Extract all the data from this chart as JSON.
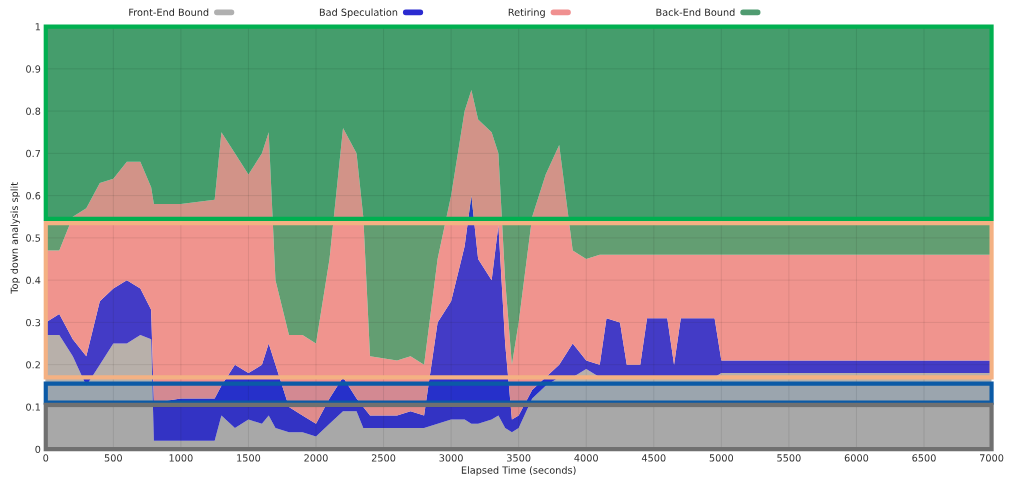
{
  "chart_data": {
    "type": "area",
    "stacked": true,
    "xlabel": "Elapsed Time (seconds)",
    "ylabel": "Top down analysis split",
    "x": [
      0,
      100,
      200,
      300,
      400,
      500,
      600,
      700,
      780,
      800,
      1000,
      1250,
      1300,
      1400,
      1500,
      1600,
      1650,
      1700,
      1800,
      1900,
      2000,
      2100,
      2200,
      2300,
      2350,
      2400,
      2600,
      2700,
      2800,
      2900,
      3000,
      3100,
      3150,
      3200,
      3300,
      3350,
      3400,
      3450,
      3500,
      3600,
      3700,
      3800,
      3900,
      4000,
      4100,
      4150,
      4250,
      4300,
      4400,
      4450,
      4600,
      4650,
      4700,
      4950,
      5000,
      5500,
      6000,
      6500,
      7000
    ],
    "series": [
      {
        "name": "Front-End Bound",
        "color": "#b0b0b0",
        "values": [
          0.27,
          0.27,
          0.22,
          0.15,
          0.2,
          0.25,
          0.25,
          0.27,
          0.26,
          0.02,
          0.02,
          0.02,
          0.08,
          0.05,
          0.07,
          0.06,
          0.08,
          0.05,
          0.04,
          0.04,
          0.03,
          0.06,
          0.09,
          0.09,
          0.05,
          0.05,
          0.05,
          0.05,
          0.05,
          0.06,
          0.07,
          0.07,
          0.06,
          0.06,
          0.07,
          0.08,
          0.05,
          0.04,
          0.05,
          0.12,
          0.15,
          0.17,
          0.17,
          0.19,
          0.17,
          0.17,
          0.17,
          0.17,
          0.17,
          0.17,
          0.17,
          0.17,
          0.17,
          0.17,
          0.18,
          0.18,
          0.18,
          0.18,
          0.18
        ]
      },
      {
        "name": "Bad Speculation",
        "color": "#2b2bd0",
        "values": [
          0.03,
          0.05,
          0.04,
          0.07,
          0.15,
          0.13,
          0.15,
          0.11,
          0.07,
          0.09,
          0.1,
          0.1,
          0.07,
          0.15,
          0.11,
          0.14,
          0.17,
          0.15,
          0.06,
          0.04,
          0.03,
          0.06,
          0.08,
          0.03,
          0.05,
          0.03,
          0.03,
          0.04,
          0.03,
          0.24,
          0.28,
          0.41,
          0.54,
          0.39,
          0.33,
          0.45,
          0.2,
          0.03,
          0.03,
          0.02,
          0.02,
          0.03,
          0.08,
          0.02,
          0.03,
          0.14,
          0.13,
          0.03,
          0.03,
          0.14,
          0.14,
          0.03,
          0.14,
          0.14,
          0.03,
          0.03,
          0.03,
          0.03,
          0.03
        ]
      },
      {
        "name": "Retiring",
        "color": "#f09090",
        "values": [
          0.17,
          0.15,
          0.29,
          0.35,
          0.28,
          0.26,
          0.28,
          0.3,
          0.29,
          0.47,
          0.46,
          0.47,
          0.6,
          0.5,
          0.47,
          0.5,
          0.5,
          0.2,
          0.17,
          0.19,
          0.19,
          0.33,
          0.59,
          0.58,
          0.45,
          0.14,
          0.13,
          0.13,
          0.12,
          0.15,
          0.25,
          0.32,
          0.25,
          0.33,
          0.35,
          0.17,
          0.15,
          0.13,
          0.22,
          0.41,
          0.48,
          0.52,
          0.22,
          0.24,
          0.26,
          0.15,
          0.16,
          0.26,
          0.26,
          0.15,
          0.15,
          0.26,
          0.15,
          0.15,
          0.25,
          0.25,
          0.25,
          0.25,
          0.25
        ]
      },
      {
        "name": "Back-End Bound",
        "color": "#4f9b70",
        "values": [
          0.53,
          0.53,
          0.45,
          0.43,
          0.37,
          0.36,
          0.32,
          0.32,
          0.38,
          0.42,
          0.42,
          0.41,
          0.25,
          0.3,
          0.35,
          0.3,
          0.25,
          0.6,
          0.73,
          0.73,
          0.75,
          0.55,
          0.24,
          0.3,
          0.45,
          0.78,
          0.79,
          0.78,
          0.8,
          0.55,
          0.4,
          0.2,
          0.15,
          0.22,
          0.25,
          0.3,
          0.6,
          0.8,
          0.7,
          0.45,
          0.35,
          0.28,
          0.53,
          0.55,
          0.54,
          0.54,
          0.54,
          0.54,
          0.54,
          0.54,
          0.54,
          0.54,
          0.54,
          0.54,
          0.54,
          0.54,
          0.54,
          0.54,
          0.54
        ]
      }
    ],
    "xlim": [
      0,
      7000
    ],
    "xticks": [
      0,
      500,
      1000,
      1500,
      2000,
      2500,
      3000,
      3500,
      4000,
      4500,
      5000,
      5500,
      6000,
      6500,
      7000
    ],
    "ylim": [
      0,
      1
    ],
    "yticks": [
      0,
      0.1,
      0.2,
      0.3,
      0.4,
      0.5,
      0.6,
      0.7,
      0.8,
      0.9,
      1
    ],
    "bands": [
      {
        "axis": "y",
        "from": 0.545,
        "to": 1.0,
        "color": "#00b050"
      },
      {
        "axis": "y",
        "from": 0.17,
        "to": 0.535,
        "color": "#f4b183"
      },
      {
        "axis": "y",
        "from": 0.11,
        "to": 0.155,
        "color": "#0b5aa6"
      },
      {
        "axis": "y",
        "from": 0.0,
        "to": 0.105,
        "color": "#707070"
      }
    ],
    "grid": true,
    "legend": "top"
  }
}
